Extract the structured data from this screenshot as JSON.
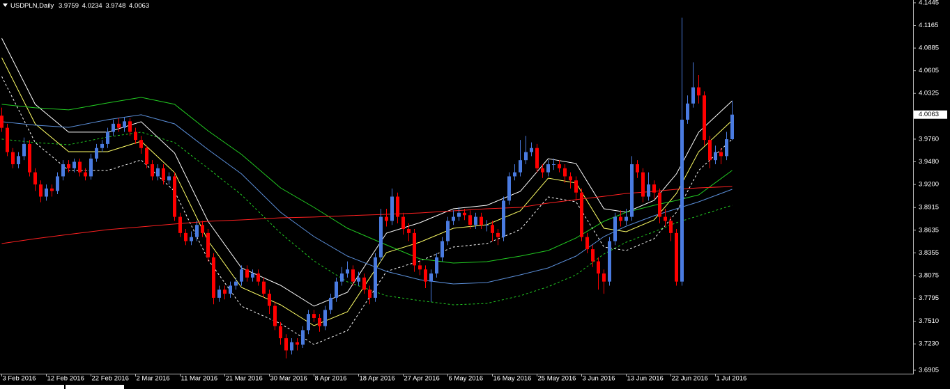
{
  "chart_data": {
    "type": "candlestick",
    "title": "USDPLN,Daily",
    "categories": [
      "3 Feb 2016",
      null,
      null,
      null,
      null,
      null,
      null,
      null,
      "12 Feb 2016",
      null,
      null,
      null,
      null,
      null,
      null,
      null,
      "22 Feb 2016",
      null,
      null,
      null,
      null,
      null,
      null,
      null,
      "2 Mar 2016",
      null,
      null,
      null,
      null,
      null,
      null,
      null,
      "11 Mar 2016",
      null,
      null,
      null,
      null,
      null,
      null,
      null,
      "21 Mar 2016",
      null,
      null,
      null,
      null,
      null,
      null,
      null,
      "30 Mar 2016",
      null,
      null,
      null,
      null,
      null,
      null,
      null,
      "8 Apr 2016",
      null,
      null,
      null,
      null,
      null,
      null,
      null,
      "18 Apr 2016",
      null,
      null,
      null,
      null,
      null,
      null,
      null,
      "27 Apr 2016",
      null,
      null,
      null,
      null,
      null,
      null,
      null,
      "6 May 2016",
      null,
      null,
      null,
      null,
      null,
      null,
      null,
      "16 May 2016",
      null,
      null,
      null,
      null,
      null,
      null,
      null,
      "25 May 2016",
      null,
      null,
      null,
      null,
      null,
      null,
      null,
      "3 Jun 2016",
      null,
      null,
      null,
      null,
      null,
      null,
      null,
      "13 Jun 2016",
      null,
      null,
      null,
      null,
      null,
      null,
      null,
      "22 Jun 2016",
      null,
      null,
      null,
      null,
      null,
      null,
      null,
      "1 Jul 2016",
      null,
      null,
      null
    ],
    "open": [
      4.005,
      3.99,
      3.96,
      3.945,
      3.955,
      3.97,
      3.935,
      3.92,
      3.905,
      3.915,
      3.912,
      3.93,
      3.945,
      3.94,
      3.948,
      3.935,
      3.93,
      3.952,
      3.965,
      3.97,
      3.985,
      3.995,
      3.99,
      3.998,
      3.985,
      3.975,
      3.965,
      3.945,
      3.93,
      3.94,
      3.925,
      3.93,
      3.88,
      3.86,
      3.85,
      3.855,
      3.87,
      3.86,
      3.83,
      3.78,
      3.79,
      3.785,
      3.795,
      3.8,
      3.815,
      3.805,
      3.81,
      3.8,
      3.785,
      3.77,
      3.745,
      3.73,
      3.715,
      3.725,
      3.722,
      3.74,
      3.76,
      3.755,
      3.745,
      3.765,
      3.78,
      3.8,
      3.81,
      3.815,
      3.8,
      3.805,
      3.79,
      3.78,
      3.83,
      3.88,
      3.875,
      3.905,
      3.88,
      3.865,
      3.86,
      3.82,
      3.815,
      3.8,
      3.81,
      3.83,
      3.85,
      3.875,
      3.88,
      3.885,
      3.882,
      3.87,
      3.88,
      3.87,
      3.87,
      3.86,
      3.855,
      3.9,
      3.93,
      3.935,
      3.95,
      3.96,
      3.965,
      3.94,
      3.935,
      3.945,
      3.945,
      3.94,
      3.93,
      3.925,
      3.91,
      3.855,
      3.84,
      3.825,
      3.81,
      3.8,
      3.85,
      3.88,
      3.875,
      3.88,
      3.945,
      3.935,
      3.905,
      3.92,
      3.91,
      3.88,
      3.875,
      3.86,
      3.8,
      4.0,
      4.02,
      4.04,
      4.03,
      3.975,
      3.95,
      3.96,
      3.955,
      3.9759
    ],
    "high": [
      4.015,
      3.995,
      3.965,
      3.96,
      3.978,
      3.975,
      3.94,
      3.925,
      3.92,
      3.92,
      3.935,
      3.95,
      3.95,
      3.952,
      3.952,
      3.94,
      3.958,
      3.97,
      3.975,
      3.99,
      4.0,
      4.002,
      4.003,
      4.002,
      3.99,
      3.98,
      3.968,
      3.95,
      3.945,
      3.945,
      3.935,
      3.935,
      3.885,
      3.865,
      3.862,
      3.875,
      3.875,
      3.865,
      3.835,
      3.795,
      3.795,
      3.8,
      3.805,
      3.82,
      3.82,
      3.815,
      3.815,
      3.805,
      3.79,
      3.775,
      3.75,
      3.735,
      3.73,
      3.73,
      3.745,
      3.765,
      3.765,
      3.76,
      3.77,
      3.785,
      3.805,
      3.818,
      3.825,
      3.82,
      3.812,
      3.81,
      3.795,
      3.835,
      3.89,
      3.89,
      3.915,
      3.91,
      3.885,
      3.872,
      3.865,
      3.825,
      3.82,
      3.815,
      3.835,
      3.855,
      3.88,
      3.888,
      3.892,
      3.89,
      3.888,
      3.885,
      3.885,
      3.876,
      3.875,
      3.865,
      3.905,
      3.935,
      3.945,
      3.975,
      3.98,
      3.972,
      3.97,
      3.945,
      3.95,
      3.952,
      3.95,
      3.945,
      3.935,
      3.93,
      3.915,
      3.86,
      3.845,
      3.83,
      3.815,
      3.855,
      3.885,
      3.888,
      3.89,
      3.955,
      3.95,
      3.94,
      3.935,
      3.925,
      3.915,
      3.89,
      3.88,
      3.865,
      4.126,
      4.03,
      4.071,
      4.055,
      4.035,
      3.98,
      3.968,
      3.965,
      3.985,
      4.0234
    ],
    "low": [
      3.985,
      3.955,
      3.94,
      3.94,
      3.95,
      3.93,
      3.912,
      3.898,
      3.9,
      3.905,
      3.908,
      3.925,
      3.935,
      3.935,
      3.93,
      3.925,
      3.926,
      3.948,
      3.96,
      3.965,
      3.98,
      3.985,
      3.985,
      3.98,
      3.97,
      3.958,
      3.94,
      3.925,
      3.925,
      3.92,
      3.92,
      3.875,
      3.855,
      3.845,
      3.845,
      3.85,
      3.855,
      3.825,
      3.772,
      3.775,
      3.778,
      3.78,
      3.79,
      3.795,
      3.8,
      3.8,
      3.795,
      3.78,
      3.76,
      3.74,
      3.722,
      3.705,
      3.71,
      3.715,
      3.718,
      3.735,
      3.75,
      3.738,
      3.74,
      3.76,
      3.775,
      3.795,
      3.805,
      3.795,
      3.795,
      3.785,
      3.772,
      3.775,
      3.825,
      3.868,
      3.87,
      3.872,
      3.858,
      3.85,
      3.812,
      3.808,
      3.792,
      3.775,
      3.805,
      3.825,
      3.845,
      3.87,
      3.875,
      3.876,
      3.865,
      3.865,
      3.865,
      3.862,
      3.85,
      3.845,
      3.85,
      3.895,
      3.925,
      3.93,
      3.945,
      3.955,
      3.935,
      3.928,
      3.93,
      3.938,
      3.935,
      3.922,
      3.915,
      3.9,
      3.85,
      3.835,
      3.818,
      3.79,
      3.785,
      3.795,
      3.845,
      3.868,
      3.87,
      3.875,
      3.928,
      3.898,
      3.9,
      3.902,
      3.872,
      3.868,
      3.85,
      3.795,
      3.795,
      3.995,
      4.015,
      4.02,
      3.968,
      3.94,
      3.945,
      3.945,
      3.95,
      3.9748
    ],
    "close": [
      3.99,
      3.96,
      3.945,
      3.955,
      3.97,
      3.935,
      3.92,
      3.905,
      3.915,
      3.912,
      3.93,
      3.945,
      3.94,
      3.948,
      3.935,
      3.93,
      3.952,
      3.965,
      3.97,
      3.985,
      3.995,
      3.99,
      3.998,
      3.985,
      3.975,
      3.965,
      3.945,
      3.93,
      3.94,
      3.925,
      3.93,
      3.88,
      3.86,
      3.85,
      3.855,
      3.87,
      3.86,
      3.83,
      3.78,
      3.79,
      3.785,
      3.795,
      3.8,
      3.815,
      3.805,
      3.81,
      3.8,
      3.785,
      3.77,
      3.745,
      3.73,
      3.715,
      3.725,
      3.722,
      3.74,
      3.76,
      3.755,
      3.745,
      3.765,
      3.78,
      3.8,
      3.81,
      3.815,
      3.8,
      3.805,
      3.79,
      3.78,
      3.83,
      3.88,
      3.875,
      3.905,
      3.88,
      3.865,
      3.86,
      3.82,
      3.815,
      3.8,
      3.81,
      3.83,
      3.85,
      3.875,
      3.88,
      3.885,
      3.882,
      3.87,
      3.88,
      3.87,
      3.87,
      3.86,
      3.855,
      3.9,
      3.93,
      3.935,
      3.95,
      3.96,
      3.965,
      3.94,
      3.935,
      3.945,
      3.945,
      3.94,
      3.93,
      3.925,
      3.91,
      3.855,
      3.84,
      3.825,
      3.81,
      3.8,
      3.85,
      3.88,
      3.875,
      3.88,
      3.945,
      3.935,
      3.905,
      3.92,
      3.91,
      3.88,
      3.875,
      3.86,
      3.8,
      4.0,
      4.02,
      4.04,
      4.03,
      3.975,
      3.95,
      3.96,
      3.955,
      3.9759,
      4.0063
    ],
    "up_color": "#4a7be0",
    "down_color": "#ff0000",
    "line_x": [
      0,
      6,
      12,
      19,
      25,
      31,
      37,
      43,
      50,
      56,
      62,
      69,
      75,
      81,
      87,
      93,
      98,
      103,
      108,
      112,
      117,
      121,
      125,
      131
    ],
    "lines": [
      {
        "color": "#ffffff",
        "dashed": false,
        "values": [
          4.1006,
          4.019,
          3.9846,
          3.9846,
          3.9975,
          3.9588,
          3.8745,
          3.8169,
          3.7954,
          3.7696,
          3.7868,
          3.8599,
          3.8728,
          3.89,
          3.8943,
          3.9115,
          3.9519,
          3.9459,
          3.89,
          3.8857,
          3.9003,
          3.933,
          3.9846,
          4.0233
        ]
      },
      {
        "color": "#ffff66",
        "dashed": false,
        "values": [
          4.0766,
          3.9949,
          3.9605,
          3.9605,
          3.9734,
          3.9347,
          3.8504,
          3.7928,
          3.7713,
          3.7455,
          3.7627,
          3.8358,
          3.8487,
          3.8659,
          3.8702,
          3.8874,
          3.9278,
          3.9218,
          3.8659,
          3.8616,
          3.8762,
          3.9089,
          3.9605,
          3.9992
        ]
      },
      {
        "color": "#ffffff",
        "dashed": true,
        "values": [
          4.0534,
          3.9717,
          3.9373,
          3.9373,
          3.9502,
          3.9115,
          3.8272,
          3.7696,
          3.7481,
          3.7223,
          3.7395,
          3.8126,
          3.8255,
          3.8427,
          3.847,
          3.8642,
          3.9046,
          3.8986,
          3.8427,
          3.8384,
          3.853,
          3.8857,
          3.9373,
          3.976
        ]
      },
      {
        "color": "#22cc22",
        "dashed": false,
        "values": [
          4.019,
          4.0147,
          4.0121,
          4.0207,
          4.0276,
          4.019,
          3.9863,
          3.9571,
          3.9158,
          3.8917,
          3.8659,
          3.8453,
          3.8281,
          3.8229,
          3.8246,
          3.8315,
          3.8384,
          3.8539,
          3.8745,
          3.8857,
          3.8943,
          3.9003,
          3.9072,
          3.9373
        ]
      },
      {
        "color": "#5b8fd9",
        "dashed": false,
        "values": [
          3.9975,
          3.9932,
          3.9906,
          4.0,
          4.0061,
          3.9949,
          3.9631,
          3.933,
          3.8857,
          3.8556,
          3.8315,
          3.8126,
          3.8023,
          3.7971,
          3.7988,
          3.8083,
          3.8169,
          3.8315,
          3.8556,
          3.8685,
          3.8814,
          3.89,
          3.8986,
          3.914
        ]
      },
      {
        "color": "#22cc22",
        "dashed": true,
        "values": [
          3.976,
          3.9717,
          3.9691,
          3.9786,
          3.9846,
          3.9717,
          3.9399,
          3.9072,
          3.8599,
          3.8255,
          3.7997,
          3.7825,
          3.7765,
          3.7713,
          3.773,
          3.7825,
          3.7937,
          3.8083,
          3.8341,
          3.8487,
          3.8616,
          3.8728,
          3.8814,
          3.8943
        ]
      },
      {
        "color": "#ff2020",
        "dashed": false,
        "values": [
          3.847,
          3.853,
          3.8582,
          3.8642,
          3.8676,
          3.8711,
          3.8745,
          3.8762,
          3.8788,
          3.8797,
          3.8814,
          3.8831,
          3.8848,
          3.8874,
          3.89,
          3.8917,
          3.8969,
          3.9012,
          3.9054,
          3.9089,
          3.9115,
          3.914,
          3.9158,
          3.9175
        ]
      }
    ],
    "ylim": [
      3.6862,
      4.1479
    ],
    "yticks": [
      4.1445,
      4.1165,
      4.0885,
      4.0605,
      4.0325,
      {
        "value": 3.976,
        "label": "3.9760"
      },
      {
        "value": 3.948,
        "label": "3.9480"
      },
      {
        "value": 3.92,
        "label": "3.9200"
      },
      3.8915,
      3.8635,
      3.8355,
      3.8075,
      3.7795,
      {
        "value": 3.751,
        "label": "3.7510"
      },
      {
        "value": 3.723,
        "label": "3.7230"
      },
      3.6905
    ]
  }
}
